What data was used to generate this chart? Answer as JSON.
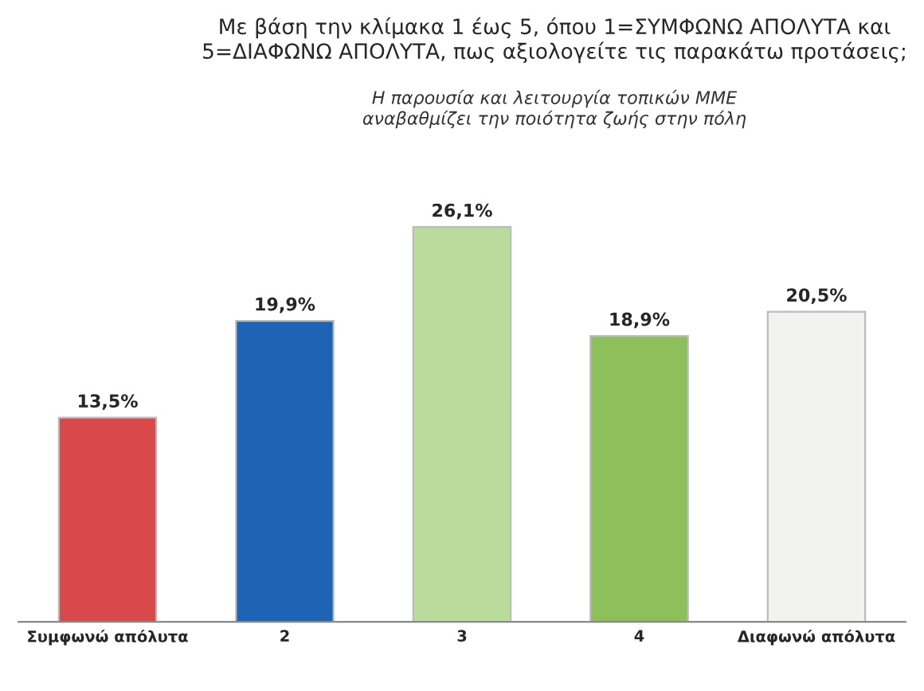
{
  "chart_data": {
    "type": "bar",
    "title": "Με βάση την κλίμακα 1 έως 5, όπου 1=ΣΥΜΦΩΝΩ ΑΠΟΛΥΤΑ και\n5=ΔΙΑΦΩΝΩ ΑΠΟΛΥΤΑ, πως αξιολογείτε τις παρακάτω προτάσεις;",
    "subtitle": "Η παρουσία και λειτουργία τοπικών ΜΜΕ\nαναβαθμίζει την ποιότητα ζωής στην πόλη",
    "categories": [
      "Συμφωνώ απόλυτα",
      "2",
      "3",
      "4",
      "Διαφωνώ απόλυτα"
    ],
    "values": [
      13.5,
      19.9,
      26.1,
      18.9,
      20.5
    ],
    "value_labels": [
      "13,5%",
      "19,9%",
      "26,1%",
      "18,9%",
      "20,5%"
    ],
    "colors": [
      "#d9494b",
      "#1f63b5",
      "#b9dc9c",
      "#8dbf5a",
      "#f2f2f0"
    ],
    "tick_labels": "x",
    "grid": false,
    "legend": false
  }
}
